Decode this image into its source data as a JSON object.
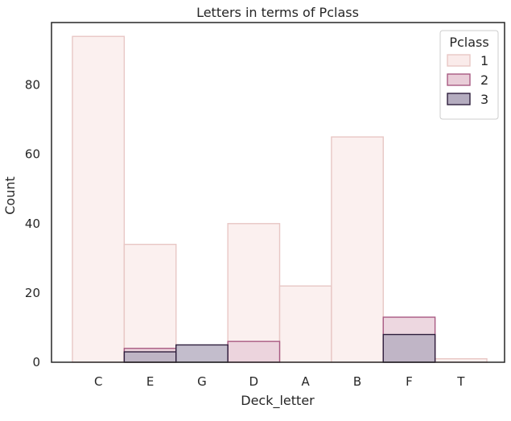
{
  "chart_data": {
    "type": "bar",
    "title": "Letters in terms of Pclass",
    "xlabel": "Deck_letter",
    "ylabel": "Count",
    "categories": [
      "C",
      "E",
      "G",
      "D",
      "A",
      "B",
      "F",
      "T"
    ],
    "ylim": [
      0,
      98
    ],
    "yticks": [
      0,
      20,
      40,
      60,
      80
    ],
    "grid": false,
    "legend": {
      "title": "Pclass",
      "placement": "top-right",
      "entries": [
        "1",
        "2",
        "3"
      ]
    },
    "series": [
      {
        "name": "1",
        "values": [
          94,
          34,
          0,
          40,
          22,
          65,
          0,
          1
        ],
        "fill": "#faebea",
        "stroke": "#e8c7c5"
      },
      {
        "name": "2",
        "values": [
          0,
          4,
          0,
          6,
          0,
          0,
          13,
          0
        ],
        "fill": "#e9cdd8",
        "stroke": "#a85a82"
      },
      {
        "name": "3",
        "values": [
          0,
          3,
          5,
          0,
          0,
          0,
          8,
          0
        ],
        "fill": "#b4acbf",
        "stroke": "#2e1e3c"
      }
    ]
  }
}
